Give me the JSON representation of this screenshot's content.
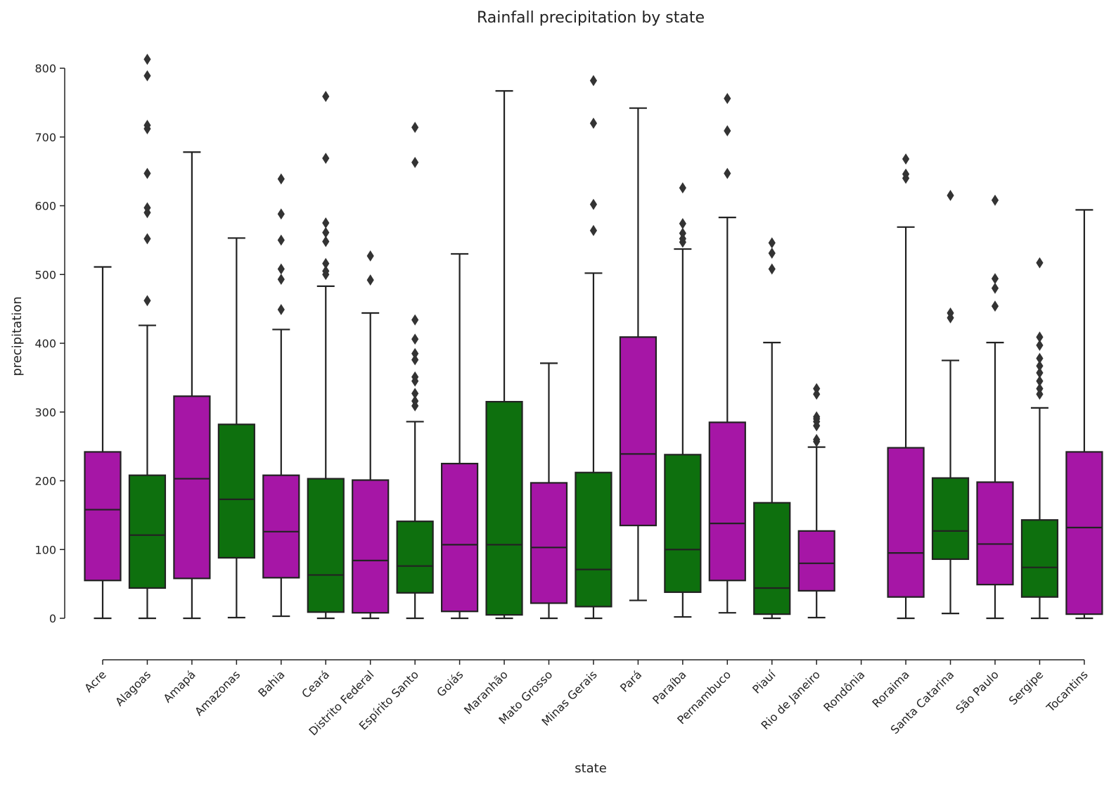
{
  "chart_data": {
    "type": "boxplot",
    "title": "Rainfall precipitation by state",
    "xlabel": "state",
    "ylabel": "precipitation",
    "ylim": [
      -60,
      830
    ],
    "yticks": [
      0,
      100,
      200,
      300,
      400,
      500,
      600,
      700,
      800
    ],
    "grid": false,
    "colors": {
      "magenta": "#a616a6",
      "green": "#0e700e",
      "line": "#222222"
    },
    "categories": [
      "Acre",
      "Alagoas",
      "Amapá",
      "Amazonas",
      "Bahia",
      "Ceará",
      "Distrito Federal",
      "Espírito Santo",
      "Goiás",
      "Maranhão",
      "Mato Grosso",
      "Minas Gerais",
      "Pará",
      "Paraíba",
      "Pernambuco",
      "Piauí",
      "Rio de Janeiro",
      "Rondônia",
      "Roraima",
      "Santa Catarina",
      "São Paulo",
      "Sergipe",
      "Tocantins"
    ],
    "boxes": [
      {
        "state": "Acre",
        "color": "magenta",
        "whislo": 0,
        "q1": 55,
        "med": 158,
        "q3": 242,
        "whishi": 511,
        "fliers": []
      },
      {
        "state": "Alagoas",
        "color": "green",
        "whislo": 0,
        "q1": 44,
        "med": 121,
        "q3": 208,
        "whishi": 426,
        "fliers": [
          462,
          552,
          590,
          597,
          647,
          712,
          717,
          789,
          813
        ]
      },
      {
        "state": "Amapá",
        "color": "magenta",
        "whislo": 0,
        "q1": 58,
        "med": 203,
        "q3": 323,
        "whishi": 678,
        "fliers": []
      },
      {
        "state": "Amazonas",
        "color": "green",
        "whislo": 1,
        "q1": 88,
        "med": 173,
        "q3": 282,
        "whishi": 553,
        "fliers": []
      },
      {
        "state": "Bahia",
        "color": "magenta",
        "whislo": 3,
        "q1": 59,
        "med": 126,
        "q3": 208,
        "whishi": 420,
        "fliers": [
          449,
          493,
          508,
          550,
          588,
          639
        ]
      },
      {
        "state": "Ceará",
        "color": "green",
        "whislo": 0,
        "q1": 9,
        "med": 63,
        "q3": 203,
        "whishi": 483,
        "fliers": [
          500,
          505,
          516,
          548,
          561,
          575,
          669,
          759
        ]
      },
      {
        "state": "Distrito Federal",
        "color": "magenta",
        "whislo": 0,
        "q1": 8,
        "med": 84,
        "q3": 201,
        "whishi": 444,
        "fliers": [
          492,
          527
        ]
      },
      {
        "state": "Espírito Santo",
        "color": "green",
        "whislo": 0,
        "q1": 37,
        "med": 76,
        "q3": 141,
        "whishi": 286,
        "fliers": [
          309,
          316,
          327,
          345,
          351,
          376,
          385,
          406,
          434,
          663,
          714
        ]
      },
      {
        "state": "Goiás",
        "color": "magenta",
        "whislo": 0,
        "q1": 10,
        "med": 107,
        "q3": 225,
        "whishi": 530,
        "fliers": []
      },
      {
        "state": "Maranhão",
        "color": "green",
        "whislo": 0,
        "q1": 5,
        "med": 107,
        "q3": 315,
        "whishi": 767,
        "fliers": []
      },
      {
        "state": "Mato Grosso",
        "color": "magenta",
        "whislo": 0,
        "q1": 22,
        "med": 103,
        "q3": 197,
        "whishi": 371,
        "fliers": []
      },
      {
        "state": "Minas Gerais",
        "color": "green",
        "whislo": 0,
        "q1": 17,
        "med": 71,
        "q3": 212,
        "whishi": 502,
        "fliers": [
          564,
          602,
          720,
          782
        ]
      },
      {
        "state": "Pará",
        "color": "magenta",
        "whislo": 26,
        "q1": 135,
        "med": 239,
        "q3": 409,
        "whishi": 742,
        "fliers": []
      },
      {
        "state": "Paraíba",
        "color": "green",
        "whislo": 2,
        "q1": 38,
        "med": 100,
        "q3": 238,
        "whishi": 537,
        "fliers": [
          547,
          552,
          560,
          574,
          626
        ]
      },
      {
        "state": "Pernambuco",
        "color": "magenta",
        "whislo": 8,
        "q1": 55,
        "med": 138,
        "q3": 285,
        "whishi": 583,
        "fliers": [
          647,
          709,
          756
        ]
      },
      {
        "state": "Piauí",
        "color": "green",
        "whislo": 0,
        "q1": 6,
        "med": 44,
        "q3": 168,
        "whishi": 401,
        "fliers": [
          508,
          531,
          546
        ]
      },
      {
        "state": "Rio de Janeiro",
        "color": "magenta",
        "whislo": 1,
        "q1": 40,
        "med": 80,
        "q3": 127,
        "whishi": 249,
        "fliers": [
          257,
          260,
          280,
          286,
          290,
          293,
          326,
          334
        ]
      },
      {
        "state": "Rondônia",
        "color": "green",
        "empty": true
      },
      {
        "state": "Roraima",
        "color": "magenta",
        "whislo": 0,
        "q1": 31,
        "med": 95,
        "q3": 248,
        "whishi": 569,
        "fliers": [
          640,
          646,
          668
        ]
      },
      {
        "state": "Santa Catarina",
        "color": "green",
        "whislo": 7,
        "q1": 86,
        "med": 127,
        "q3": 204,
        "whishi": 375,
        "fliers": [
          437,
          444,
          615
        ]
      },
      {
        "state": "São Paulo",
        "color": "magenta",
        "whislo": 0,
        "q1": 49,
        "med": 108,
        "q3": 198,
        "whishi": 401,
        "fliers": [
          454,
          480,
          494,
          608
        ]
      },
      {
        "state": "Sergipe",
        "color": "green",
        "whislo": 0,
        "q1": 31,
        "med": 74,
        "q3": 143,
        "whishi": 306,
        "fliers": [
          326,
          334,
          345,
          357,
          367,
          378,
          397,
          409,
          517
        ]
      },
      {
        "state": "Tocantins",
        "color": "magenta",
        "whislo": 0,
        "q1": 6,
        "med": 132,
        "q3": 242,
        "whishi": 594,
        "fliers": []
      }
    ]
  }
}
